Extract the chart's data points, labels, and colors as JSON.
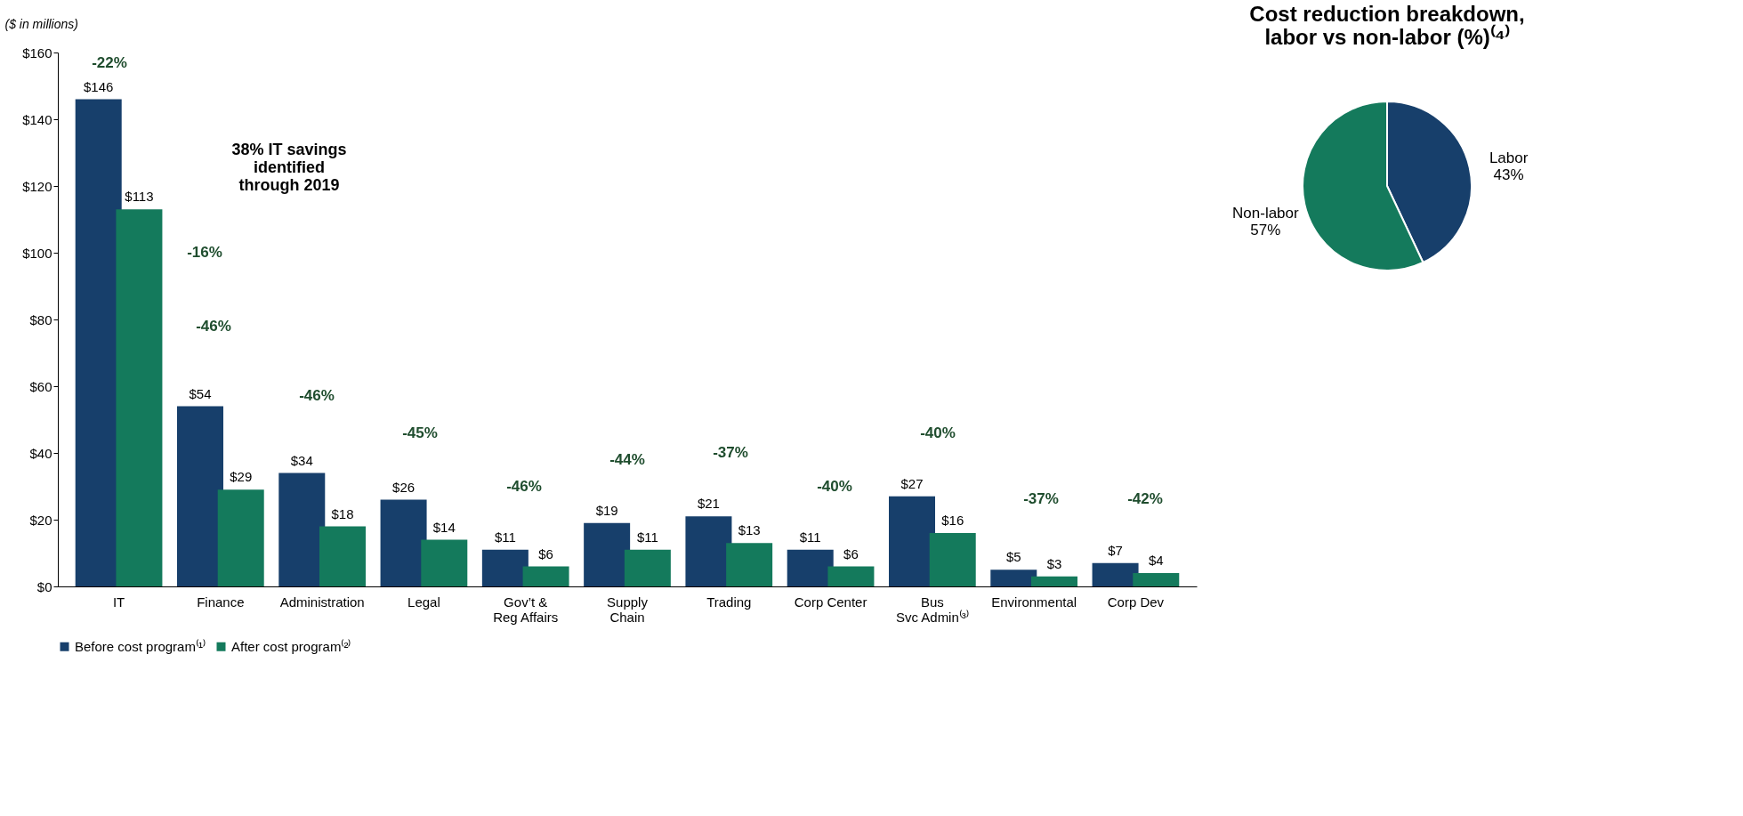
{
  "chart_data": [
    {
      "type": "bar",
      "ylabel": "($ in millions)",
      "categories": [
        "IT",
        "Finance",
        "Administration",
        "Legal",
        "Gov’t &\nReg Affairs",
        "Supply\nChain",
        "Trading",
        "Corp Center",
        "Bus\nSvc Admin⁽³⁾",
        "Environmental",
        "Corp Dev"
      ],
      "series": [
        {
          "name": "Before cost program⁽¹⁾",
          "color": "#173f6b",
          "values": [
            146,
            54,
            34,
            26,
            11,
            19,
            21,
            11,
            27,
            5,
            7
          ],
          "value_labels": [
            "$146",
            "$54",
            "$34",
            "$26",
            "$11",
            "$19",
            "$21",
            "$11",
            "$27",
            "$5",
            "$7"
          ]
        },
        {
          "name": "After cost program⁽²⁾",
          "color": "#147a5c",
          "values": [
            113,
            29,
            18,
            14,
            6,
            11,
            13,
            6,
            16,
            3,
            4
          ],
          "value_labels": [
            "$113",
            "$29",
            "$18",
            "$14",
            "$6",
            "$11",
            "$13",
            "$6",
            "$16",
            "$3",
            "$4"
          ]
        }
      ],
      "ylim": [
        0,
        160
      ],
      "yticks": [
        {
          "value": 0,
          "label": "$0"
        },
        {
          "value": 20,
          "label": "$20"
        },
        {
          "value": 40,
          "label": "$40"
        },
        {
          "value": 60,
          "label": "$60"
        },
        {
          "value": 80,
          "label": "$80"
        },
        {
          "value": 100,
          "label": "$100"
        },
        {
          "value": 120,
          "label": "$120"
        },
        {
          "value": 140,
          "label": "$140"
        },
        {
          "value": 160,
          "label": "$160"
        }
      ],
      "grid": false,
      "legend": "bottom",
      "annotations": [
        "-22%",
        "-16%",
        "-46%",
        "-46%",
        "-45%",
        "-46%",
        "-44%",
        "-37%",
        "-40%",
        "-40%",
        "-37%",
        "-42%",
        "38% IT savings\nidentified\nthrough 2019"
      ]
    },
    {
      "type": "pie",
      "title": "Cost reduction breakdown,\nlabor vs non-labor (%)⁽⁴⁾",
      "categories": [
        "Labor",
        "Non-labor"
      ],
      "values": [
        43,
        57
      ],
      "colors": [
        "#173f6b",
        "#147a5c"
      ],
      "value_labels": [
        "43%",
        "57%"
      ]
    }
  ]
}
